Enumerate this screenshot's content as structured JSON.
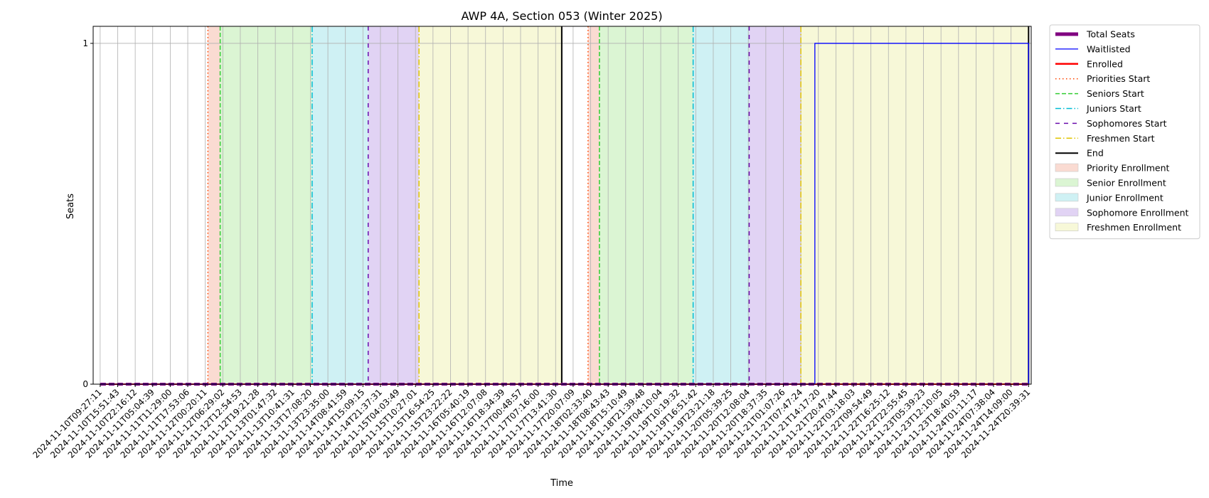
{
  "chart_data": {
    "type": "line",
    "title": "AWP 4A, Section 053 (Winter 2025)",
    "xlabel": "Time",
    "ylabel": "Seats",
    "ylim": [
      0,
      1.05
    ],
    "yticks": [
      0,
      1
    ],
    "grid": true,
    "legend_placement": "outside upper right",
    "x_tick_labels": [
      "2024-11-10T09:27:11",
      "2024-11-10T15:51:43",
      "2024-11-10T22:16:12",
      "2024-11-11T05:04:39",
      "2024-11-11T11:29:00",
      "2024-11-11T17:53:06",
      "2024-11-12T00:20:11",
      "2024-11-12T06:29:02",
      "2024-11-12T12:54:53",
      "2024-11-12T19:21:28",
      "2024-11-13T01:47:32",
      "2024-11-13T10:41:31",
      "2024-11-13T17:08:20",
      "2024-11-13T23:35:00",
      "2024-11-14T08:41:59",
      "2024-11-14T15:09:15",
      "2024-11-14T21:37:31",
      "2024-11-15T04:03:49",
      "2024-11-15T10:27:01",
      "2024-11-15T16:54:25",
      "2024-11-15T23:22:22",
      "2024-11-16T05:40:19",
      "2024-11-16T12:07:08",
      "2024-11-16T18:34:39",
      "2024-11-17T00:48:57",
      "2024-11-17T07:16:00",
      "2024-11-17T13:41:30",
      "2024-11-17T20:07:09",
      "2024-11-18T02:33:40",
      "2024-11-18T08:43:43",
      "2024-11-18T15:10:49",
      "2024-11-18T21:39:48",
      "2024-11-19T04:10:04",
      "2024-11-19T10:19:32",
      "2024-11-19T16:51:42",
      "2024-11-19T23:21:18",
      "2024-11-20T05:39:25",
      "2024-11-20T12:08:04",
      "2024-11-20T18:37:35",
      "2024-11-21T01:07:26",
      "2024-11-21T07:47:24",
      "2024-11-21T14:17:20",
      "2024-11-21T20:47:44",
      "2024-11-22T03:18:03",
      "2024-11-22T09:54:49",
      "2024-11-22T16:25:12",
      "2024-11-22T22:55:45",
      "2024-11-23T05:39:23",
      "2024-11-23T12:10:05",
      "2024-11-23T18:40:59",
      "2024-11-24T01:11:17",
      "2024-11-24T07:38:04",
      "2024-11-24T14:09:00",
      "2024-11-24T20:39:31"
    ],
    "series": [
      {
        "name": "Total Seats",
        "color": "#800080",
        "style": "dashed-thick",
        "x": [
          0,
          53
        ],
        "values": [
          0,
          0
        ]
      },
      {
        "name": "Waitlisted",
        "color": "#0000ff",
        "style": "solid",
        "x": [
          0,
          40.8,
          40.8,
          53.0,
          53.0
        ],
        "values": [
          0,
          0,
          1,
          1,
          0
        ]
      },
      {
        "name": "Enrolled",
        "color": "#ff0000",
        "style": "solid",
        "x": [
          0,
          53
        ],
        "values": [
          0,
          0
        ]
      }
    ],
    "markers": [
      {
        "name": "Priorities Start",
        "color": "#ff4500",
        "style": "dotted",
        "x": [
          6.15,
          27.85
        ]
      },
      {
        "name": "Seniors Start",
        "color": "#32cd32",
        "style": "dashed",
        "x": [
          6.85,
          28.5
        ]
      },
      {
        "name": "Juniors Start",
        "color": "#00bcd4",
        "style": "dashdot",
        "x": [
          12.1,
          33.85
        ]
      },
      {
        "name": "Sophomores Start",
        "color": "#6a0dad",
        "style": "loosedash",
        "x": [
          15.3,
          37.05
        ]
      },
      {
        "name": "Freshmen Start",
        "color": "#e0c400",
        "style": "dashdot-light",
        "x": [
          18.2,
          40.0
        ]
      },
      {
        "name": "End",
        "color": "#000000",
        "style": "solid",
        "x": [
          26.35,
          53.0
        ]
      }
    ],
    "periods": [
      {
        "name": "Priority Enrollment",
        "color": "#fadbd2",
        "spans": [
          [
            6.15,
            6.85
          ],
          [
            27.85,
            28.5
          ]
        ]
      },
      {
        "name": "Senior Enrollment",
        "color": "#dbf5d3",
        "spans": [
          [
            6.85,
            12.1
          ],
          [
            28.5,
            33.85
          ]
        ]
      },
      {
        "name": "Junior Enrollment",
        "color": "#cff1f4",
        "spans": [
          [
            12.1,
            15.3
          ],
          [
            33.85,
            37.05
          ]
        ]
      },
      {
        "name": "Sophomore Enrollment",
        "color": "#e1d3f4",
        "spans": [
          [
            15.3,
            18.2
          ],
          [
            37.05,
            40.0
          ]
        ]
      },
      {
        "name": "Freshmen Enrollment",
        "color": "#f7f8d8",
        "spans": [
          [
            18.2,
            26.35
          ],
          [
            40.0,
            53.0
          ]
        ]
      }
    ]
  }
}
